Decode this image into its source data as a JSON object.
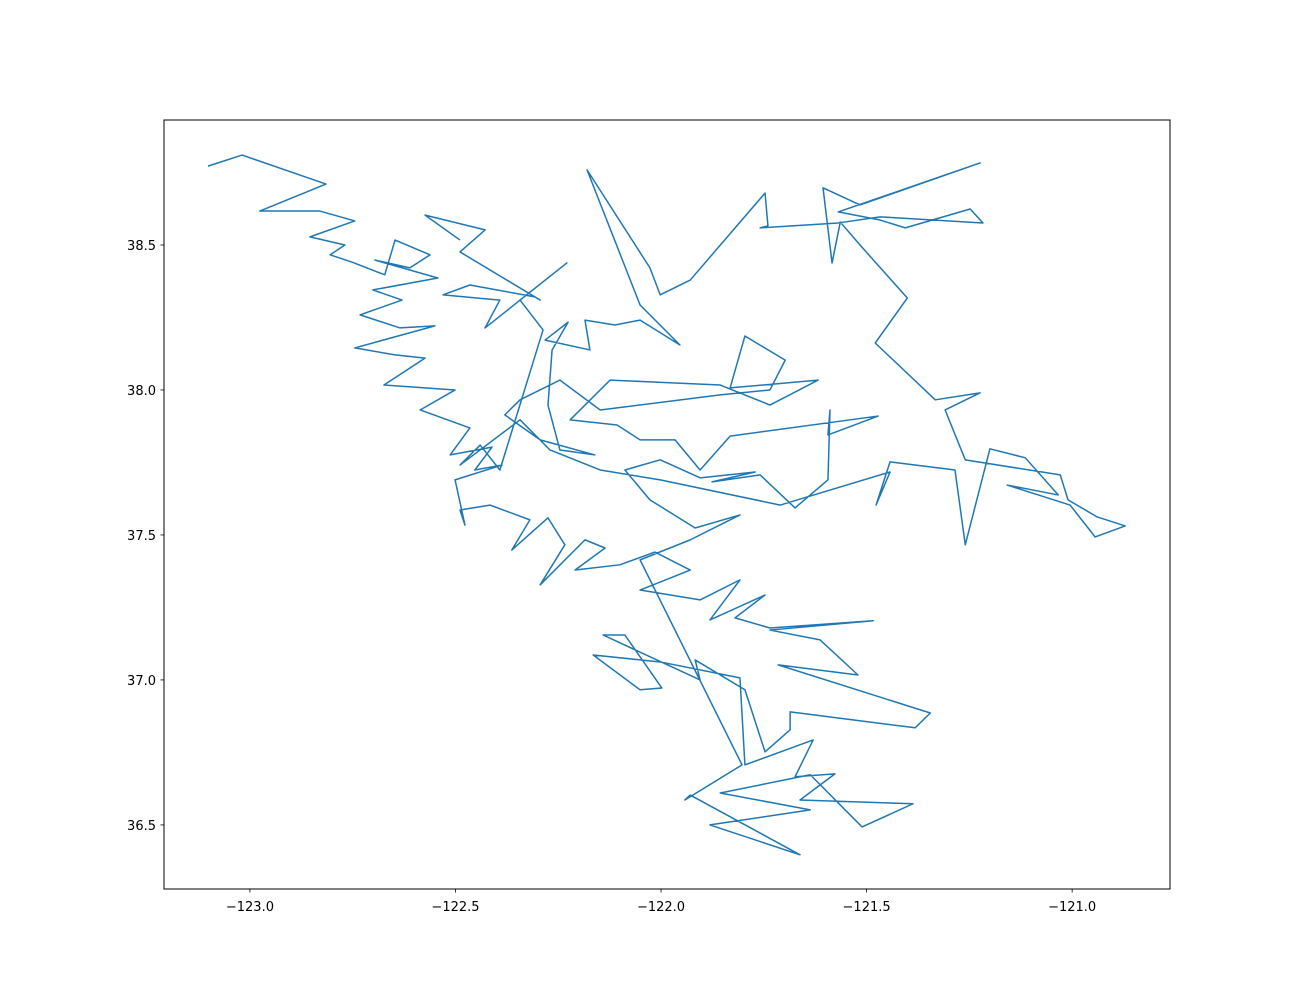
{
  "chart_data": {
    "type": "line",
    "color": "#1f77b4",
    "xlim": [
      -123.209,
      -120.762
    ],
    "ylim": [
      36.279,
      38.931
    ],
    "xticks": [
      {
        "value": -123.0,
        "label": "−123.0"
      },
      {
        "value": -122.5,
        "label": "−122.5"
      },
      {
        "value": -122.0,
        "label": "−122.0"
      },
      {
        "value": -121.5,
        "label": "−121.5"
      },
      {
        "value": -121.0,
        "label": "−121.0"
      }
    ],
    "yticks": [
      {
        "value": 36.5,
        "label": "36.5"
      },
      {
        "value": 37.0,
        "label": "37.0"
      },
      {
        "value": 37.5,
        "label": "37.5"
      },
      {
        "value": 38.0,
        "label": "38.0"
      },
      {
        "value": 38.5,
        "label": "38.5"
      }
    ],
    "x": [
      -123.102,
      -123.019,
      -122.815,
      -122.976,
      -122.83,
      -122.745,
      -122.854,
      -122.769,
      -122.805,
      -122.752,
      -122.672,
      -122.647,
      -122.562,
      -122.611,
      -122.696,
      -122.543,
      -122.701,
      -122.63,
      -122.732,
      -122.635,
      -122.55,
      -122.745,
      -122.647,
      -122.574,
      -122.674,
      -122.501,
      -122.586,
      -122.465,
      -122.513,
      -122.411,
      -122.453,
      -122.387,
      -122.501,
      -122.477,
      -122.489,
      -122.416,
      -122.319,
      -122.363,
      -122.275,
      -122.234,
      -122.294,
      -122.185,
      -122.136,
      -122.209,
      -122.1,
      -122.015,
      -121.929,
      -122.051,
      -121.905,
      -121.808,
      -121.881,
      -121.747,
      -121.82,
      -121.735,
      -121.484,
      -121.735,
      -121.613,
      -121.521,
      -121.715,
      -121.345,
      -121.382,
      -121.686,
      -121.686,
      -121.747,
      -121.796,
      -121.917,
      -121.905,
      -122.141,
      -122.088,
      -121.998,
      -122.051,
      -122.165,
      -122.002,
      -121.808,
      -121.796,
      -121.63,
      -121.674,
      -121.577,
      -121.662,
      -121.387,
      -121.511,
      -121.637,
      -121.856,
      -121.637,
      -121.881,
      -121.662,
      -121.929,
      -121.942,
      -121.803,
      -122.051,
      -121.929,
      -121.808,
      -121.917,
      -122.027,
      -122.088,
      -122.002,
      -121.905,
      -121.771,
      -121.876,
      -121.759,
      -121.674,
      -121.594,
      -121.589,
      -121.594,
      -121.472,
      -121.832,
      -121.905,
      -121.966,
      -122.051,
      -122.107,
      -122.221,
      -122.124,
      -122.027,
      -121.856,
      -121.735,
      -121.618,
      -121.832,
      -121.796,
      -121.698,
      -121.735,
      -121.856,
      -122.148,
      -122.246,
      -122.343,
      -122.38,
      -122.294,
      -122.161,
      -122.246,
      -122.275,
      -122.265,
      -122.226,
      -122.282,
      -122.173,
      -122.185,
      -122.112,
      -122.051,
      -121.954,
      -122.051,
      -122.18,
      -122.027,
      -122.002,
      -121.929,
      -121.747,
      -121.74,
      -121.759,
      -121.569,
      -121.467,
      -121.217,
      -121.248,
      -121.406,
      -121.467,
      -121.569,
      -121.224,
      -121.516,
      -121.606,
      -121.584,
      -121.564,
      -121.516,
      -121.401,
      -121.479,
      -121.333,
      -121.224,
      -121.309,
      -121.26,
      -121.029,
      -121.01,
      -120.939,
      -120.871,
      -120.944,
      -121.005,
      -121.158,
      -121.034,
      -121.114,
      -121.2,
      -121.26,
      -121.285,
      -121.443,
      -121.477,
      -121.443,
      -121.71,
      -122.002,
      -122.148,
      -122.27,
      -122.343,
      -122.489,
      -122.44,
      -122.392,
      -122.287,
      -122.343,
      -122.229,
      -122.428,
      -122.392,
      -122.53,
      -122.465,
      -122.307,
      -122.294,
      -122.489,
      -122.428,
      -122.574,
      -122.489
    ],
    "values": [
      38.772,
      38.81,
      38.71,
      38.617,
      38.617,
      38.583,
      38.528,
      38.5,
      38.466,
      38.441,
      38.397,
      38.517,
      38.466,
      38.421,
      38.448,
      38.386,
      38.345,
      38.31,
      38.259,
      38.214,
      38.221,
      38.145,
      38.121,
      38.11,
      38.017,
      38.0,
      37.931,
      37.869,
      37.776,
      37.803,
      37.724,
      37.741,
      37.69,
      37.534,
      37.586,
      37.603,
      37.552,
      37.448,
      37.559,
      37.466,
      37.328,
      37.483,
      37.455,
      37.379,
      37.397,
      37.441,
      37.379,
      37.31,
      37.276,
      37.345,
      37.207,
      37.293,
      37.214,
      37.179,
      37.204,
      37.172,
      37.138,
      37.017,
      37.052,
      36.886,
      36.835,
      36.89,
      36.828,
      36.752,
      36.966,
      37.069,
      37.0,
      37.155,
      37.155,
      36.972,
      36.966,
      37.086,
      37.062,
      37.007,
      36.707,
      36.793,
      36.666,
      36.676,
      36.586,
      36.573,
      36.493,
      36.673,
      36.61,
      36.552,
      36.5,
      36.397,
      36.603,
      36.586,
      36.707,
      37.414,
      37.483,
      37.569,
      37.524,
      37.621,
      37.724,
      37.759,
      37.697,
      37.717,
      37.683,
      37.707,
      37.593,
      37.69,
      37.931,
      37.845,
      37.91,
      37.841,
      37.724,
      37.828,
      37.828,
      37.879,
      37.897,
      38.034,
      38.028,
      38.017,
      37.948,
      38.034,
      38.007,
      38.186,
      38.103,
      38.0,
      37.983,
      37.931,
      38.034,
      37.966,
      37.914,
      37.828,
      37.776,
      37.793,
      37.948,
      38.138,
      38.234,
      38.172,
      38.138,
      38.241,
      38.224,
      38.241,
      38.155,
      38.293,
      38.759,
      38.421,
      38.328,
      38.379,
      38.679,
      38.566,
      38.559,
      38.576,
      38.597,
      38.576,
      38.624,
      38.559,
      38.586,
      38.614,
      38.783,
      38.638,
      38.697,
      38.438,
      38.579,
      38.5,
      38.317,
      38.162,
      37.966,
      37.99,
      37.931,
      37.759,
      37.707,
      37.621,
      37.562,
      37.531,
      37.493,
      37.603,
      37.672,
      37.638,
      37.766,
      37.797,
      37.466,
      37.724,
      37.752,
      37.603,
      37.717,
      37.603,
      37.69,
      37.724,
      37.793,
      37.897,
      37.741,
      37.81,
      37.724,
      38.207,
      38.31,
      38.438,
      38.214,
      38.31,
      38.328,
      38.362,
      38.321,
      38.31,
      38.476,
      38.552,
      38.603,
      38.517
    ]
  }
}
